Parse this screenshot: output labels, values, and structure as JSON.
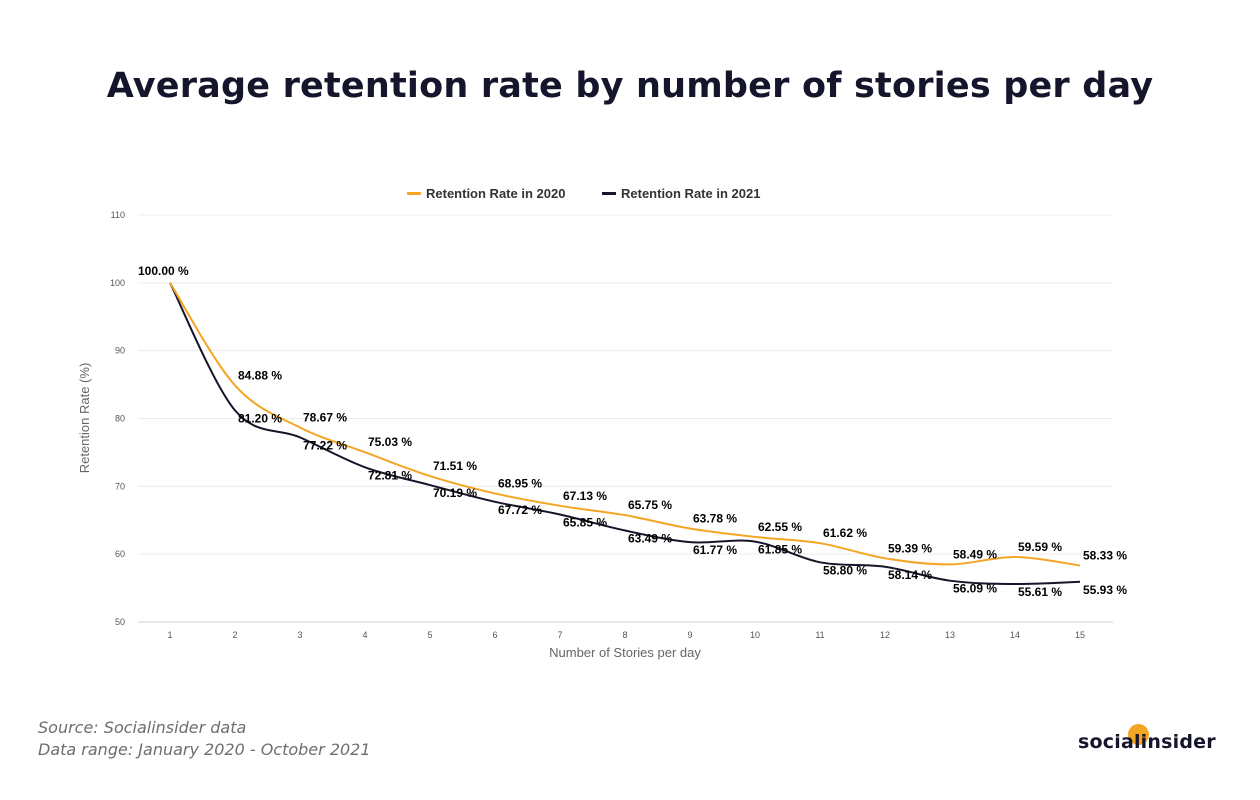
{
  "title": "Average retention rate by number of stories per day",
  "source_line1": "Source: Socialinsider data",
  "source_line2": "Data range: January 2020 - October 2021",
  "logo_text": "socialinsider",
  "colors": {
    "series_2020": "#f5a524",
    "series_2021": "#15152b",
    "logo_accent": "#f5a524"
  },
  "chart_data": {
    "type": "line",
    "xlabel": "Number of Stories per day",
    "ylabel": "Retention Rate (%)",
    "ylim": [
      50,
      110
    ],
    "yticks": [
      50,
      60,
      70,
      80,
      90,
      100,
      110
    ],
    "x": [
      1,
      2,
      3,
      4,
      5,
      6,
      7,
      8,
      9,
      10,
      11,
      12,
      13,
      14,
      15
    ],
    "grid": true,
    "legend": "top-left",
    "series": [
      {
        "name": "Retention Rate in 2020",
        "color": "#f5a524",
        "values": [
          100.0,
          84.88,
          78.67,
          75.03,
          71.51,
          68.95,
          67.13,
          65.75,
          63.78,
          62.55,
          61.62,
          59.39,
          58.49,
          59.59,
          58.33
        ],
        "labels": [
          "100.00 %",
          "84.88 %",
          "78.67 %",
          "75.03 %",
          "71.51 %",
          "68.95 %",
          "67.13 %",
          "65.75 %",
          "63.78 %",
          "62.55 %",
          "61.62 %",
          "59.39 %",
          "58.49 %",
          "59.59 %",
          "58.33 %"
        ]
      },
      {
        "name": "Retention Rate in 2021",
        "color": "#15152b",
        "values": [
          100.0,
          81.2,
          77.22,
          72.81,
          70.19,
          67.72,
          65.85,
          63.49,
          61.77,
          61.85,
          58.8,
          58.14,
          56.09,
          55.61,
          55.93
        ],
        "labels": [
          "100.00 %",
          "81.20 %",
          "77.22 %",
          "72.81 %",
          "70.19 %",
          "67.72 %",
          "65.85 %",
          "63.49 %",
          "61.77 %",
          "61.85 %",
          "58.80 %",
          "58.14 %",
          "56.09 %",
          "55.61 %",
          "55.93 %"
        ]
      }
    ]
  }
}
